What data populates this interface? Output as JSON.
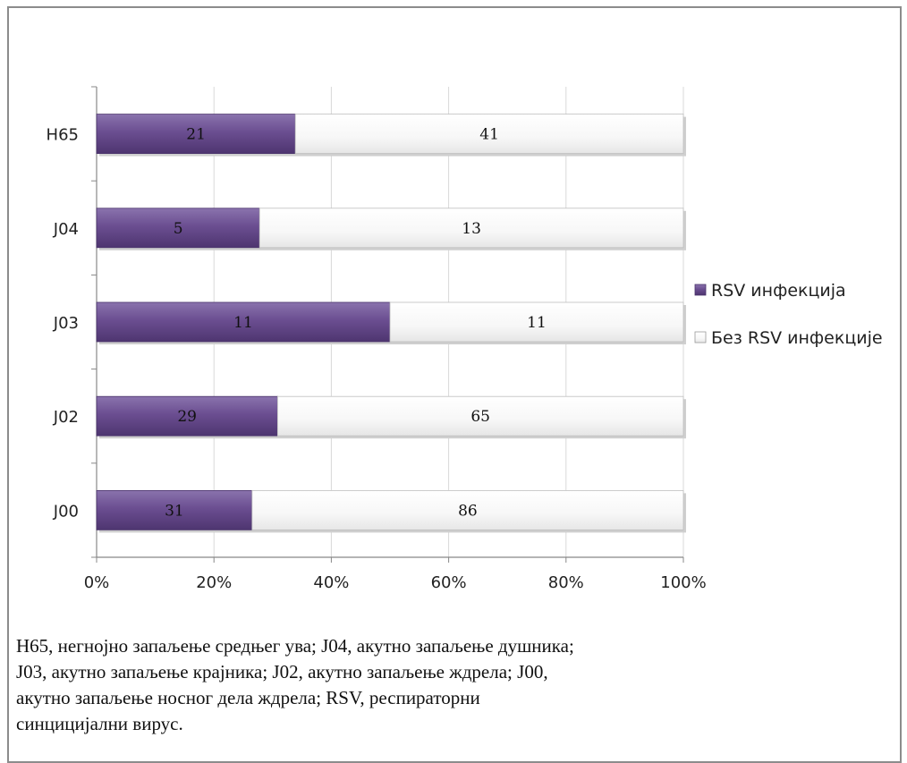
{
  "chart_data": {
    "type": "bar",
    "orientation": "horizontal",
    "stacked": "percent",
    "categories": [
      "H65",
      "J04",
      "J03",
      "J02",
      "J00"
    ],
    "series": [
      {
        "name": "RSV инфекција",
        "values": [
          21,
          5,
          11,
          29,
          31
        ],
        "color": "#6b4e91"
      },
      {
        "name": "Без RSV инфекције",
        "values": [
          41,
          13,
          11,
          65,
          86
        ],
        "color": "#ffffff"
      }
    ],
    "xlim": [
      0,
      100
    ],
    "xticks": [
      "0%",
      "20%",
      "40%",
      "60%",
      "80%",
      "100%"
    ],
    "grid": "vertical",
    "legend_position": "right"
  },
  "caption": {
    "lines": [
      "H65, негнојно запаљење средњег ува; J04, акутно запаљење душника;",
      "J03, акутно запаљење крајника;  J02, акутно запаљење ждрела; J00,",
      "акутно запаљење носног дела ждрела; RSV, респираторни",
      "синцицијални вирус."
    ]
  }
}
